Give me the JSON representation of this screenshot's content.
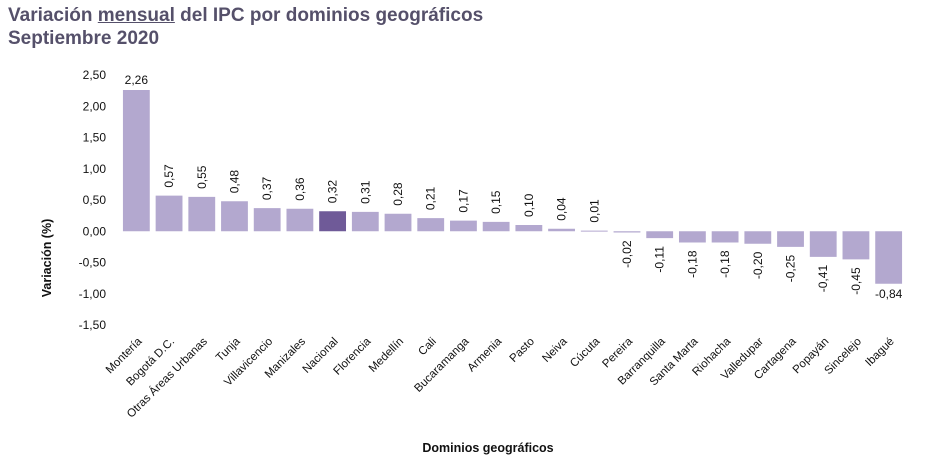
{
  "title": {
    "pre": "Variación ",
    "underlined": "mensual",
    "post": " del IPC por dominios geográficos",
    "line2": "Septiembre 2020"
  },
  "colors": {
    "bar": "#b3a8cf",
    "highlight": "#6f5a98",
    "title": "#55506a"
  },
  "chart_data": {
    "type": "bar",
    "title": "Variación mensual del IPC por dominios geográficos Septiembre 2020",
    "xlabel": "Dominios geográficos",
    "ylabel": "Variación (%)",
    "ylim": [
      -1.5,
      2.5
    ],
    "yticks": [
      "2,50",
      "2,00",
      "1,50",
      "1,00",
      "0,50",
      "0,00",
      "-0,50",
      "-1,00",
      "-1,50"
    ],
    "ytick_values": [
      2.5,
      2.0,
      1.5,
      1.0,
      0.5,
      0.0,
      -0.5,
      -1.0,
      -1.5
    ],
    "grid": false,
    "highlight_category": "Nacional",
    "categories": [
      "Montería",
      "Bogotá D.C.",
      "Otras Áreas Urbanas",
      "Tunja",
      "Villavicencio",
      "Manizales",
      "Nacional",
      "Florencia",
      "Medellín",
      "Cali",
      "Bucaramanga",
      "Armenia",
      "Pasto",
      "Neiva",
      "Cúcuta",
      "Pereira",
      "Barranquilla",
      "Santa Marta",
      "Riohacha",
      "Valledupar",
      "Cartagena",
      "Popayán",
      "Sincelejo",
      "Ibagué"
    ],
    "values": [
      2.26,
      0.57,
      0.55,
      0.48,
      0.37,
      0.36,
      0.32,
      0.31,
      0.28,
      0.21,
      0.17,
      0.15,
      0.1,
      0.04,
      0.01,
      -0.02,
      -0.11,
      -0.18,
      -0.18,
      -0.2,
      -0.25,
      -0.41,
      -0.45,
      -0.84
    ],
    "labels": [
      "2,26",
      "0,57",
      "0,55",
      "0,48",
      "0,37",
      "0,36",
      "0,32",
      "0,31",
      "0,28",
      "0,21",
      "0,17",
      "0,15",
      "0,10",
      "0,04",
      "0,01",
      "-0,02",
      "-0,11",
      "-0,18",
      "-0,18",
      "-0,20",
      "-0,25",
      "-0,41",
      "-0,45",
      "-0,84"
    ]
  }
}
